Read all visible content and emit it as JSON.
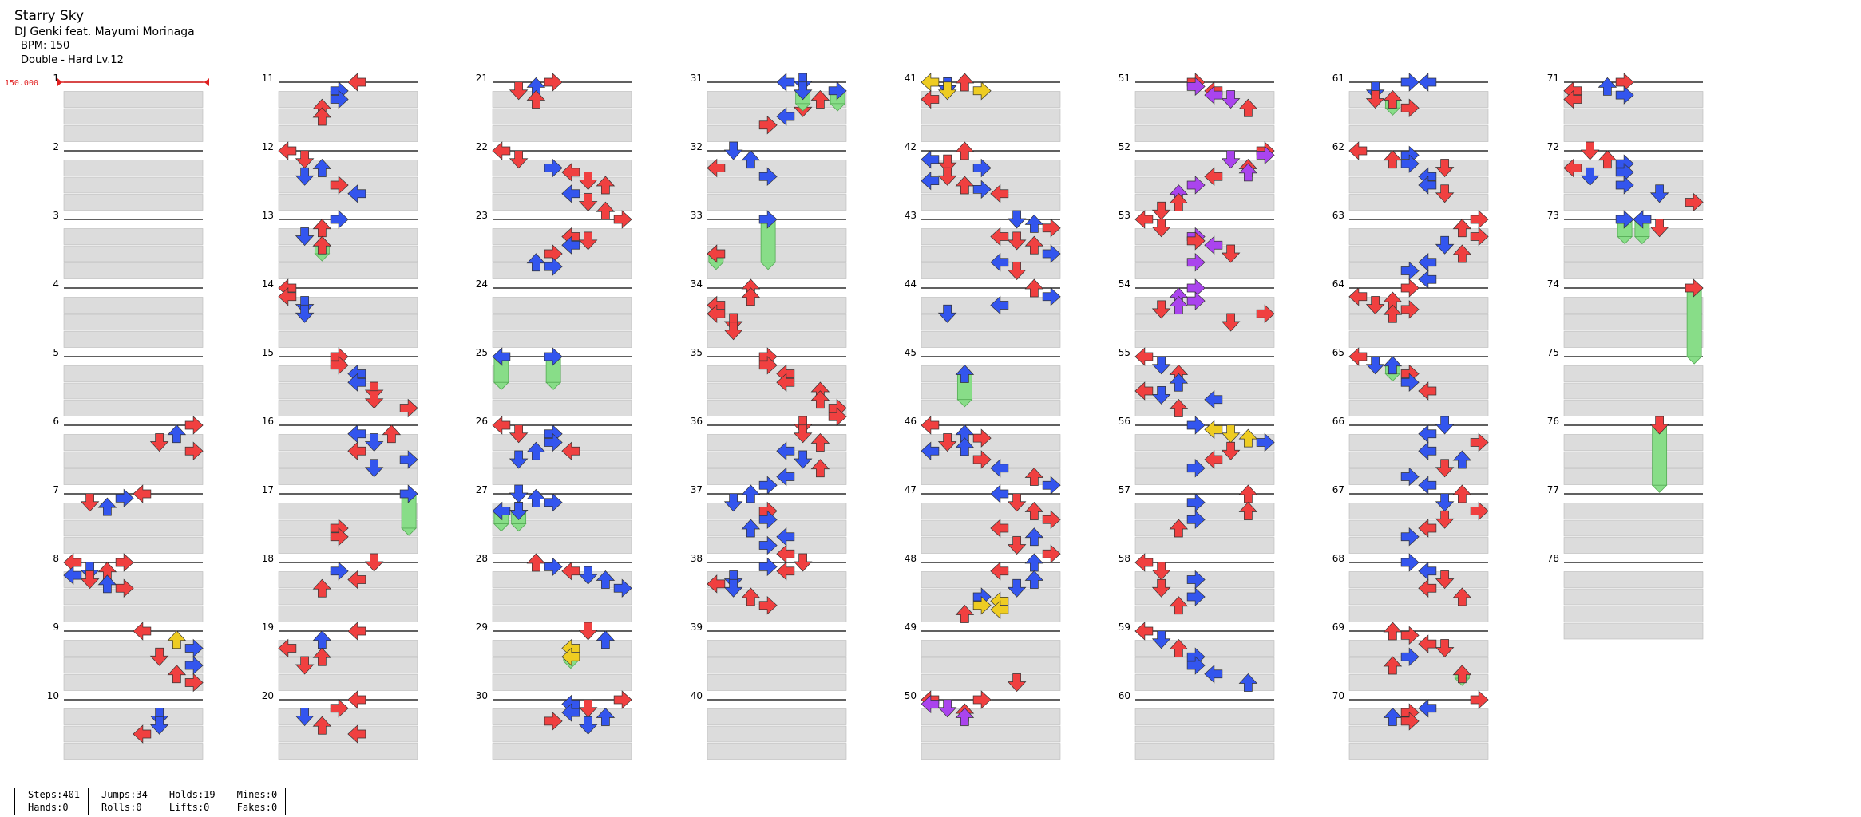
{
  "song": {
    "title": "Starry Sky",
    "artist": "DJ Genki feat. Mayumi Morinaga",
    "bpm_text": "BPM: 150",
    "difficulty_text": "Double - Hard Lv.12"
  },
  "chart": {
    "bpm_marker": "150.000",
    "measure_count": 78,
    "colors": {
      "quarter": "#f04040",
      "eighth": "#3355ee",
      "twelfth": "#aa44ee",
      "sixteenth": "#eecc22",
      "hold": "#88dd88",
      "lane_band": "#dcdcdc",
      "measure_line": "#000000"
    }
  },
  "stats": [
    {
      "top": "Steps:401",
      "bottom": "Hands:0"
    },
    {
      "top": "Jumps:34",
      "bottom": "Rolls:0"
    },
    {
      "top": "Holds:19",
      "bottom": "Lifts:0"
    },
    {
      "top": "Mines:0",
      "bottom": "Fakes:0"
    }
  ]
}
